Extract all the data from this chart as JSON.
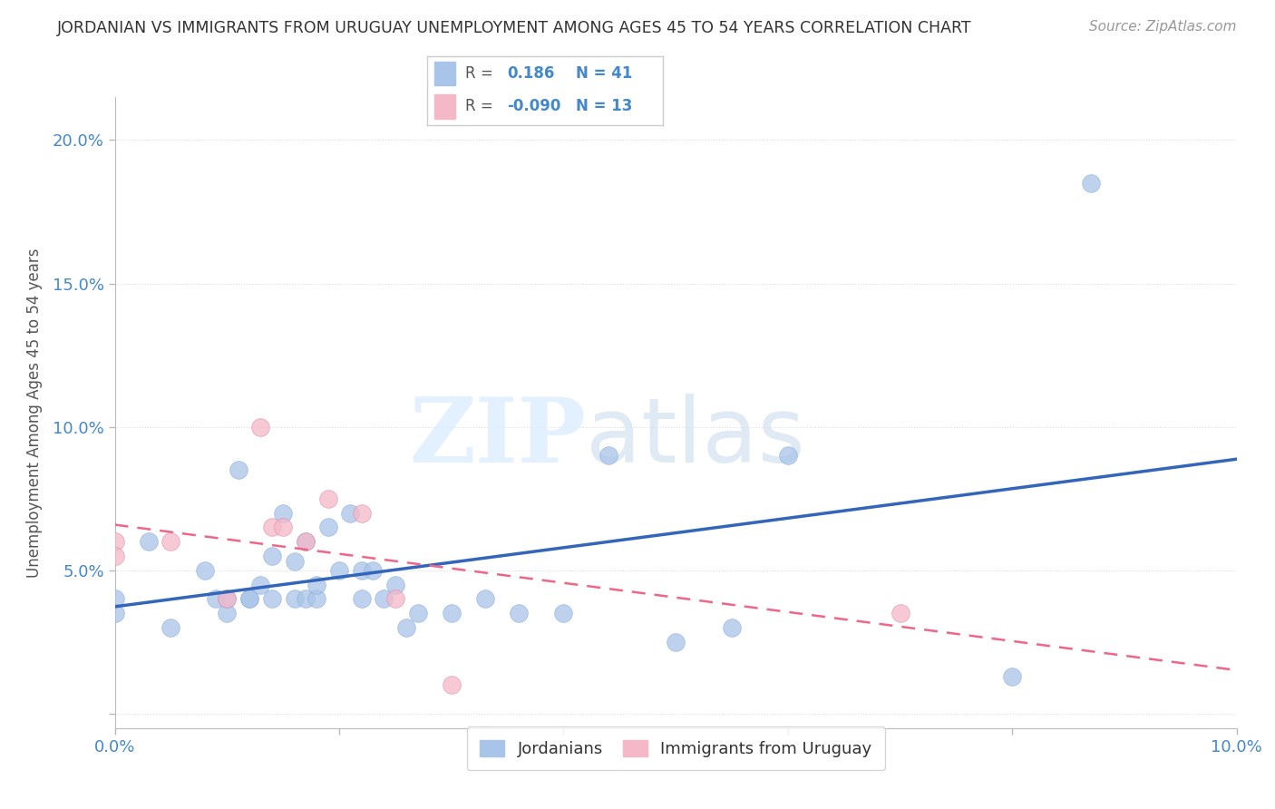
{
  "title": "JORDANIAN VS IMMIGRANTS FROM URUGUAY UNEMPLOYMENT AMONG AGES 45 TO 54 YEARS CORRELATION CHART",
  "source": "Source: ZipAtlas.com",
  "ylabel": "Unemployment Among Ages 45 to 54 years",
  "xlim": [
    0.0,
    0.1
  ],
  "ylim": [
    -0.005,
    0.215
  ],
  "xticks": [
    0.0,
    0.02,
    0.04,
    0.06,
    0.08,
    0.1
  ],
  "xticklabels": [
    "0.0%",
    "",
    "",
    "",
    "",
    "10.0%"
  ],
  "yticks": [
    0.0,
    0.05,
    0.1,
    0.15,
    0.2
  ],
  "yticklabels": [
    "",
    "5.0%",
    "10.0%",
    "15.0%",
    "20.0%"
  ],
  "jordanians_R": "0.186",
  "jordanians_N": "41",
  "uruguay_R": "-0.090",
  "uruguay_N": "13",
  "blue_color": "#A8C4E8",
  "pink_color": "#F5B8C8",
  "blue_line_color": "#3366BB",
  "pink_line_color": "#EE6688",
  "title_color": "#333333",
  "axis_color": "#BBBBBB",
  "watermark_zip": "ZIP",
  "watermark_atlas": "atlas",
  "jordanians_x": [
    0.0,
    0.0,
    0.003,
    0.005,
    0.008,
    0.009,
    0.01,
    0.01,
    0.011,
    0.012,
    0.012,
    0.013,
    0.014,
    0.014,
    0.015,
    0.016,
    0.016,
    0.017,
    0.017,
    0.018,
    0.018,
    0.019,
    0.02,
    0.021,
    0.022,
    0.022,
    0.023,
    0.024,
    0.025,
    0.026,
    0.027,
    0.03,
    0.033,
    0.036,
    0.04,
    0.044,
    0.05,
    0.055,
    0.06,
    0.08,
    0.087
  ],
  "jordanians_y": [
    0.04,
    0.035,
    0.06,
    0.03,
    0.05,
    0.04,
    0.035,
    0.04,
    0.085,
    0.04,
    0.04,
    0.045,
    0.04,
    0.055,
    0.07,
    0.04,
    0.053,
    0.06,
    0.04,
    0.04,
    0.045,
    0.065,
    0.05,
    0.07,
    0.04,
    0.05,
    0.05,
    0.04,
    0.045,
    0.03,
    0.035,
    0.035,
    0.04,
    0.035,
    0.035,
    0.09,
    0.025,
    0.03,
    0.09,
    0.013,
    0.185
  ],
  "uruguay_x": [
    0.0,
    0.0,
    0.005,
    0.01,
    0.013,
    0.014,
    0.015,
    0.017,
    0.019,
    0.022,
    0.025,
    0.03,
    0.07
  ],
  "uruguay_y": [
    0.06,
    0.055,
    0.06,
    0.04,
    0.1,
    0.065,
    0.065,
    0.06,
    0.075,
    0.07,
    0.04,
    0.01,
    0.035
  ],
  "legend_box_color": "#FFFFFF",
  "legend_border_color": "#CCCCCC",
  "grid_color": "#DDDDDD",
  "background_color": "#FFFFFF"
}
